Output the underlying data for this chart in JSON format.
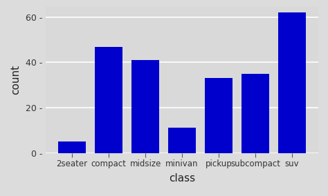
{
  "categories": [
    "2seater",
    "compact",
    "midsize",
    "minivan",
    "pickup",
    "subcompact",
    "suv"
  ],
  "values": [
    5,
    47,
    41,
    11,
    33,
    35,
    62
  ],
  "bar_color": "#0000CC",
  "outer_background": "#DCDCDC",
  "panel_background": "#D9D9D9",
  "grid_color": "#FFFFFF",
  "xlabel": "class",
  "ylabel": "count",
  "ylim": [
    0,
    65
  ],
  "yticks": [
    0,
    20,
    40,
    60
  ],
  "ytick_labels": [
    "0 -",
    "20 -",
    "40 -",
    "60 -"
  ],
  "title": ""
}
